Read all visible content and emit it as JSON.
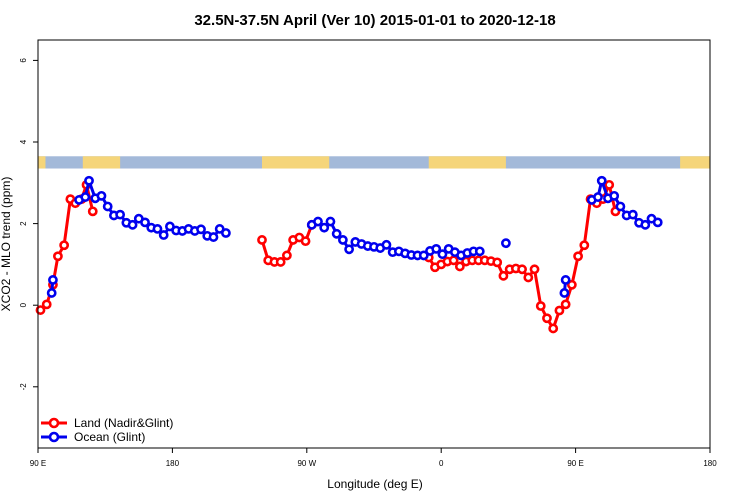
{
  "chart_data": {
    "type": "line",
    "title": "32.5N-37.5N April (Ver 10)   2015-01-01 to 2020-12-18",
    "xlabel": "Longitude (deg E)",
    "ylabel": "XCO2 - MLO trend (ppm)",
    "xlim": [
      -90,
      180
    ],
    "ylim": [
      -3.5,
      6.5
    ],
    "x_ticks": [
      {
        "value": -90,
        "label": "90 E"
      },
      {
        "value": -36,
        "label": "180"
      },
      {
        "value": 18,
        "label": "90 W"
      },
      {
        "value": 72,
        "label": "0"
      },
      {
        "value": 126,
        "label": "90 E"
      },
      {
        "value": 180,
        "label": "180"
      }
    ],
    "y_ticks": [
      {
        "value": -2,
        "label": "-2"
      },
      {
        "value": 0,
        "label": "0"
      },
      {
        "value": 2,
        "label": "2"
      },
      {
        "value": 4,
        "label": "4"
      },
      {
        "value": 6,
        "label": "6"
      }
    ],
    "land_map_band": {
      "y_range": [
        3.35,
        3.65
      ],
      "ocean_color": "#a3b9d9",
      "land_color": "#f5d57a",
      "land_segments": [
        [
          -90,
          -87
        ],
        [
          -72,
          -57
        ],
        [
          0,
          27
        ],
        [
          67,
          98
        ],
        [
          168,
          180
        ]
      ]
    },
    "legend": {
      "position": "bottom-left",
      "entries": [
        "Land (Nadir&Glint)",
        "Ocean (Glint)"
      ]
    },
    "series": [
      {
        "name": "Land (Nadir&Glint)",
        "color": "#ff0000",
        "segments": [
          [
            [
              -89,
              -0.12
            ],
            [
              -86.5,
              0.02
            ],
            [
              -84,
              0.5
            ],
            [
              -82,
              1.2
            ],
            [
              -79.5,
              1.47
            ],
            [
              -77,
              2.6
            ],
            [
              -75,
              2.5
            ],
            [
              -72.5,
              2.6
            ],
            [
              -70.5,
              2.95
            ],
            [
              -68,
              2.3
            ]
          ],
          [
            [
              0,
              1.6
            ],
            [
              2.5,
              1.1
            ],
            [
              5,
              1.06
            ],
            [
              7.5,
              1.06
            ],
            [
              10,
              1.22
            ],
            [
              12.5,
              1.6
            ],
            [
              15,
              1.66
            ],
            [
              17.5,
              1.57
            ],
            [
              20,
              1.97
            ]
          ],
          [
            [
              67,
              1.17
            ],
            [
              69.5,
              0.93
            ],
            [
              72,
              1.0
            ],
            [
              74.5,
              1.07
            ],
            [
              77,
              1.1
            ],
            [
              79.5,
              0.95
            ],
            [
              82,
              1.07
            ],
            [
              84.5,
              1.1
            ],
            [
              87,
              1.1
            ],
            [
              89.5,
              1.1
            ],
            [
              92,
              1.08
            ],
            [
              94.5,
              1.05
            ],
            [
              97,
              0.72
            ],
            [
              99.5,
              0.88
            ],
            [
              102,
              0.9
            ],
            [
              104.5,
              0.88
            ],
            [
              107,
              0.68
            ],
            [
              109.5,
              0.88
            ],
            [
              112,
              -0.02
            ],
            [
              114.5,
              -0.32
            ],
            [
              117,
              -0.57
            ],
            [
              119.5,
              -0.13
            ],
            [
              122,
              0.02
            ],
            [
              124.5,
              0.5
            ],
            [
              127,
              1.2
            ],
            [
              129.5,
              1.47
            ],
            [
              132,
              2.6
            ],
            [
              134.5,
              2.5
            ],
            [
              137,
              2.6
            ],
            [
              139.5,
              2.95
            ],
            [
              142,
              2.3
            ]
          ]
        ]
      },
      {
        "name": "Ocean (Glint)",
        "color": "#0000ee",
        "segments": [
          [
            [
              -84.5,
              0.3
            ],
            [
              -84,
              0.62
            ]
          ],
          [
            [
              -73.5,
              2.58
            ],
            [
              -71,
              2.65
            ],
            [
              -69.5,
              3.05
            ],
            [
              -67,
              2.62
            ],
            [
              -64.5,
              2.68
            ],
            [
              -62,
              2.42
            ],
            [
              -59.5,
              2.2
            ],
            [
              -57,
              2.22
            ],
            [
              -54.5,
              2.02
            ],
            [
              -52,
              1.97
            ],
            [
              -49.5,
              2.12
            ],
            [
              -47,
              2.03
            ],
            [
              -44.5,
              1.9
            ],
            [
              -42,
              1.87
            ],
            [
              -39.5,
              1.72
            ],
            [
              -37,
              1.93
            ],
            [
              -34.5,
              1.83
            ],
            [
              -32,
              1.82
            ],
            [
              -29.5,
              1.87
            ],
            [
              -27,
              1.82
            ],
            [
              -24.5,
              1.86
            ],
            [
              -22,
              1.7
            ],
            [
              -19.5,
              1.67
            ],
            [
              -17,
              1.87
            ],
            [
              -14.5,
              1.77
            ]
          ],
          [
            [
              20,
              1.97
            ],
            [
              22.5,
              2.05
            ],
            [
              25,
              1.9
            ],
            [
              27.5,
              2.05
            ],
            [
              30,
              1.75
            ],
            [
              32.5,
              1.6
            ],
            [
              35,
              1.37
            ],
            [
              37.5,
              1.55
            ],
            [
              40,
              1.5
            ],
            [
              42.5,
              1.45
            ],
            [
              45,
              1.43
            ],
            [
              47.5,
              1.4
            ],
            [
              50,
              1.48
            ],
            [
              52.5,
              1.3
            ],
            [
              55,
              1.32
            ],
            [
              57.5,
              1.27
            ],
            [
              60,
              1.23
            ],
            [
              62.5,
              1.22
            ],
            [
              65,
              1.22
            ],
            [
              67.5,
              1.33
            ],
            [
              70,
              1.38
            ],
            [
              72.5,
              1.25
            ],
            [
              75,
              1.38
            ],
            [
              77.5,
              1.3
            ],
            [
              80,
              1.22
            ],
            [
              82.5,
              1.28
            ],
            [
              85,
              1.32
            ],
            [
              87.5,
              1.32
            ]
          ],
          [
            [
              121.5,
              0.3
            ],
            [
              122,
              0.62
            ]
          ],
          [
            [
              132.5,
              2.58
            ],
            [
              135,
              2.65
            ],
            [
              136.5,
              3.05
            ],
            [
              139,
              2.62
            ],
            [
              141.5,
              2.68
            ],
            [
              144,
              2.42
            ],
            [
              146.5,
              2.2
            ],
            [
              149,
              2.22
            ],
            [
              151.5,
              2.02
            ],
            [
              154,
              1.97
            ],
            [
              156.5,
              2.12
            ],
            [
              159,
              2.03
            ]
          ]
        ],
        "isolated_points": [
          [
            98,
            1.52
          ]
        ]
      }
    ]
  }
}
